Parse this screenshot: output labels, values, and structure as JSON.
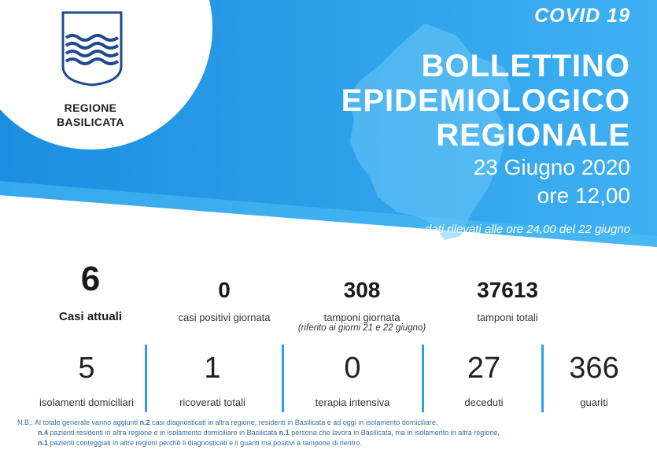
{
  "header": {
    "region_line1": "REGIONE",
    "region_line2": "BASILICATA",
    "covid": "COVID 19",
    "title_line1": "BOLLETTINO",
    "title_line2": "EPIDEMIOLOGICO",
    "title_line3": "REGIONALE",
    "date": "23 Giugno 2020",
    "time": "ore 12,00",
    "note": "dati rilevati alle ore 24,00 del 22 giugno"
  },
  "stats_top": {
    "casi_attuali": {
      "value": "6",
      "label": "Casi attuali"
    },
    "casi_positivi": {
      "value": "0",
      "label": "casi positivi giornata"
    },
    "tamponi_giornata": {
      "value": "308",
      "label": "tamponi giornata",
      "sub": "(riferito ai giorni 21 e 22 giugno)"
    },
    "tamponi_totali": {
      "value": "37613",
      "label": "tamponi totali"
    }
  },
  "stats_bottom": {
    "isolamenti": {
      "value": "5",
      "label": "isolamenti domiciliari"
    },
    "ricoverati": {
      "value": "1",
      "label": "ricoverati totali"
    },
    "terapia": {
      "value": "0",
      "label": "terapia intensiva"
    },
    "deceduti": {
      "value": "27",
      "label": "deceduti"
    },
    "guariti": {
      "value": "366",
      "label": "guariti"
    }
  },
  "footnote": {
    "l1a": "N.B.: Al totale generale vanno aggiunti ",
    "l1b": "n.2",
    "l1c": " casi diagnosticati in altra regione, residenti in Basilicata e ad oggi in isolamento domiciliare,",
    "l2a": "n.4",
    "l2b": " pazienti residenti in altra regione e in isolamento domiciliare in Basilicata ",
    "l2c": "n.1",
    "l2d": " persona che lavora in Basilicata, ma in isolamento in altra regione,",
    "l3a": "n.1",
    "l3b": "  pazienti conteggiati in altre regioni perchè li diagnosticati e li guariti ma positivi a tampone di rientro."
  },
  "colors": {
    "banner_dark": "#1a8ee0",
    "banner_light": "#4fc0f5",
    "separator": "#2aa0e6",
    "footnote": "#3a6ea5"
  },
  "icons": {
    "crest": "regione-basilicata-crest-icon",
    "map": "basilicata-map-icon"
  }
}
